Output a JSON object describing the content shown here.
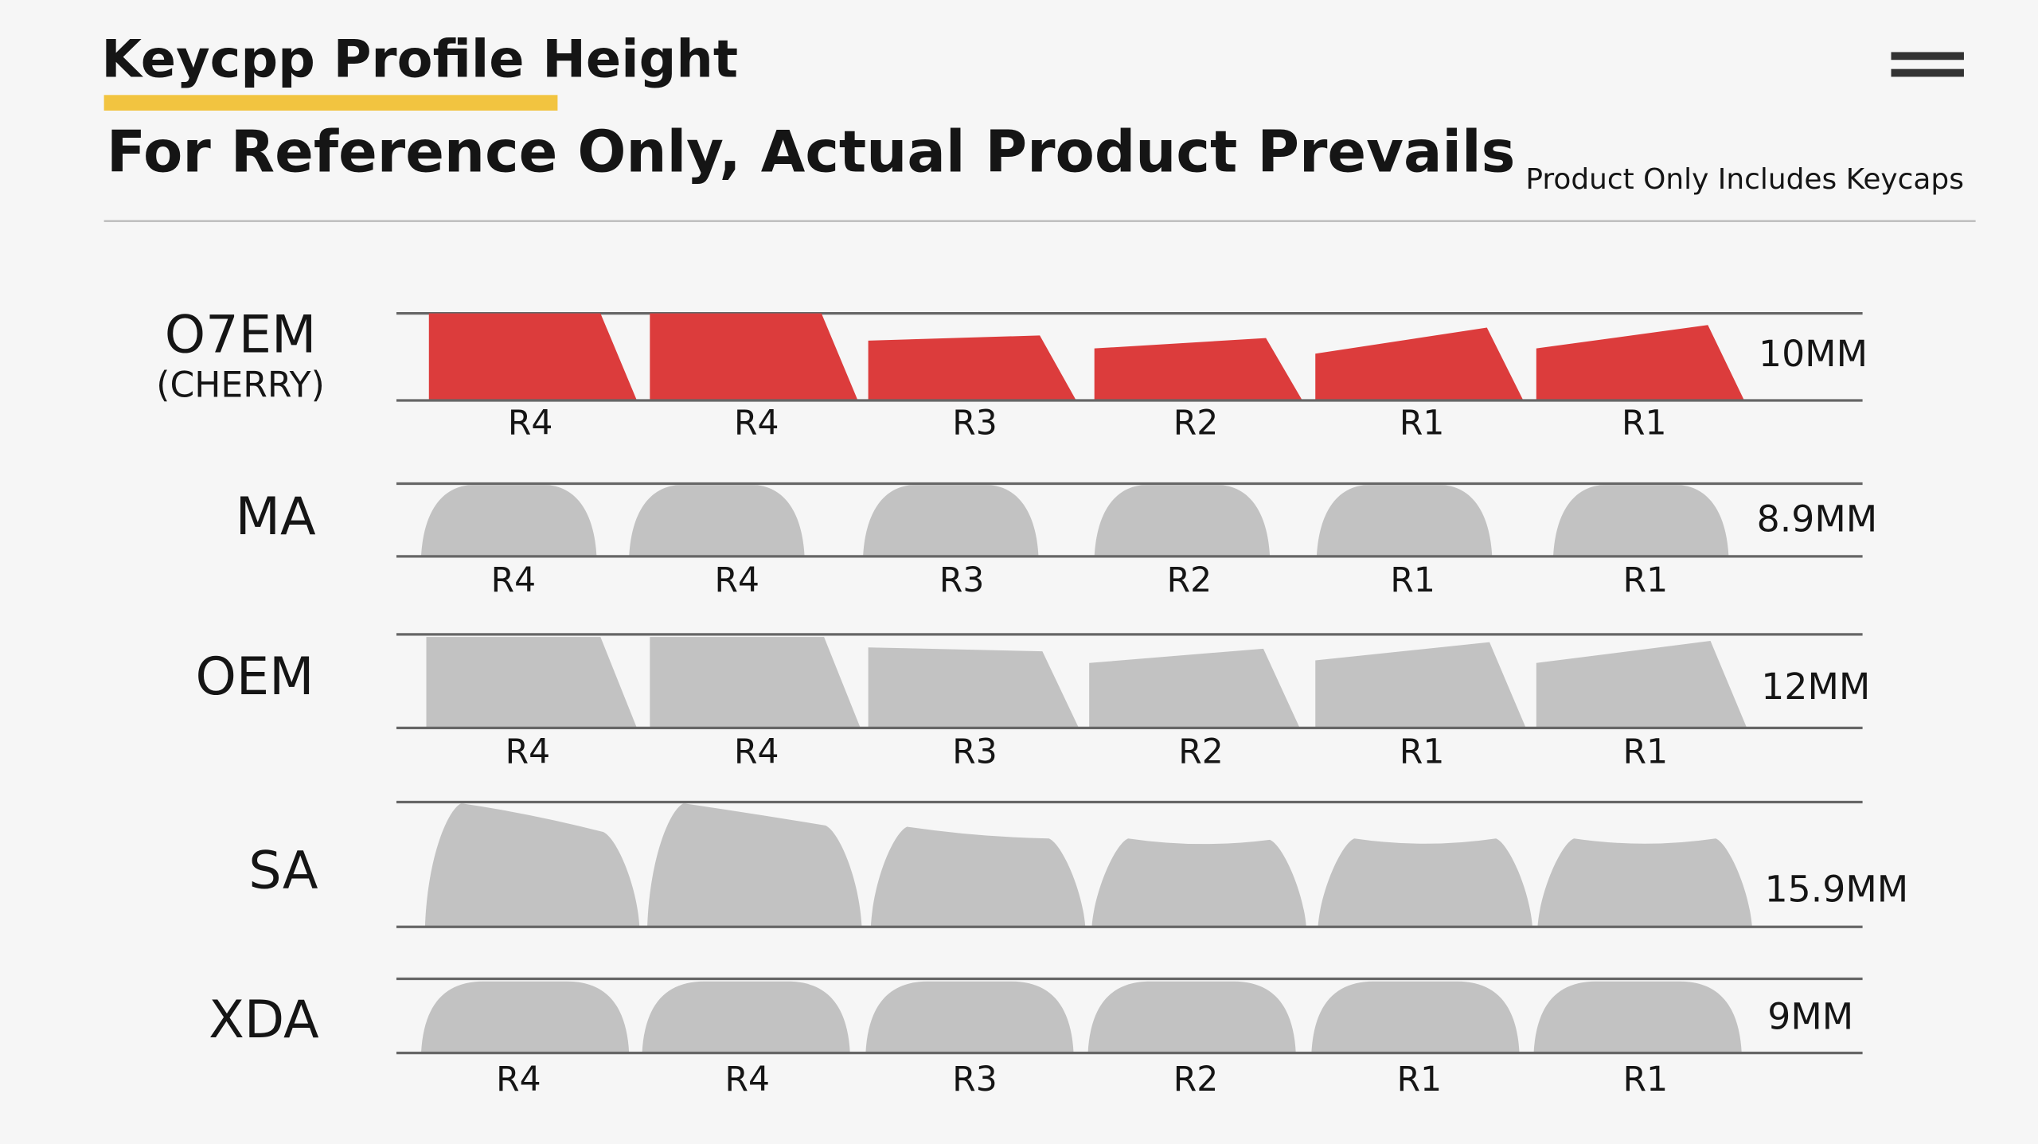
{
  "header": {
    "title": "Keycpp Profile Height",
    "subtitle": "For Reference Only, Actual Product Prevails",
    "note": "Product Only Includes Keycaps"
  },
  "profiles": [
    {
      "name": "O7EM",
      "sub": "(CHERRY)",
      "height": "10MM",
      "rows": [
        "R4",
        "R4",
        "R3",
        "R2",
        "R1",
        "R1"
      ]
    },
    {
      "name": "MA",
      "height": "8.9MM",
      "rows": [
        "R4",
        "R4",
        "R3",
        "R2",
        "R1",
        "R1"
      ]
    },
    {
      "name": "OEM",
      "height": "12MM",
      "rows": [
        "R4",
        "R4",
        "R3",
        "R2",
        "R1",
        "R1"
      ]
    },
    {
      "name": "SA",
      "height": "15.9MM"
    },
    {
      "name": "XDA",
      "height": "9MM",
      "rows": [
        "R4",
        "R4",
        "R3",
        "R2",
        "R1",
        "R1"
      ]
    }
  ]
}
